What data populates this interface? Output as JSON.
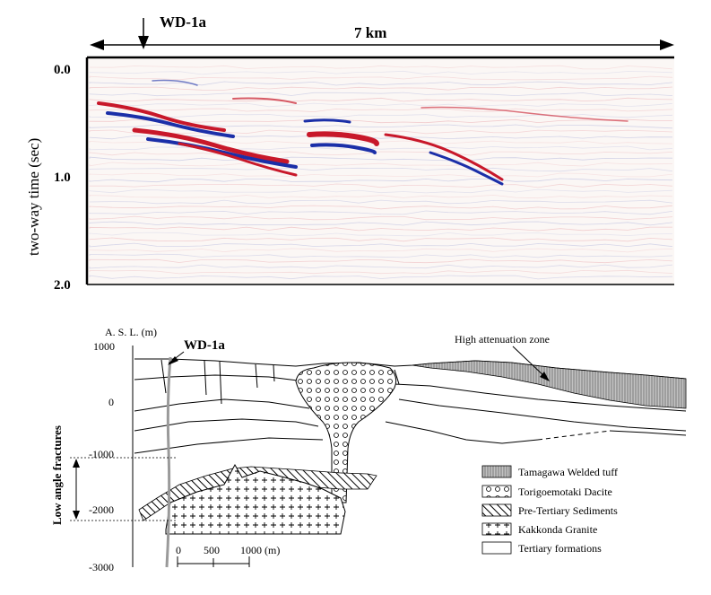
{
  "seismic_section": {
    "well_label": "WD-1a",
    "distance_label": "7 km",
    "y_axis_label": "two-way time (sec)",
    "y_ticks": [
      "0.0",
      "1.0",
      "2.0"
    ]
  },
  "geologic_section": {
    "y_axis_label": "A. S. L. (m)",
    "y_ticks": [
      "1000",
      "0",
      "-1000",
      "-2000",
      "-3000"
    ],
    "well_label": "WD-1a",
    "attenuation_label": "High attenuation zone",
    "fractures_label": "Low angle fractures",
    "scale_ticks": [
      "0",
      "500",
      "1000 (m)"
    ]
  },
  "legend": {
    "items": [
      {
        "label": "Tamagawa Welded tuff",
        "pattern": "vertical-lines-gray"
      },
      {
        "label": "Torigoemotaki Dacite",
        "pattern": "circles"
      },
      {
        "label": "Pre-Tertiary Sediments",
        "pattern": "diagonal-hatch"
      },
      {
        "label": "Kakkonda Granite",
        "pattern": "crosses"
      },
      {
        "label": "Tertiary formations",
        "pattern": "blank"
      }
    ]
  },
  "colors": {
    "reflector_red": "#c8182a",
    "reflector_blue": "#1b2fa8",
    "well_gray": "#9a9a9a",
    "tuff_gray": "#b0b0b0"
  }
}
